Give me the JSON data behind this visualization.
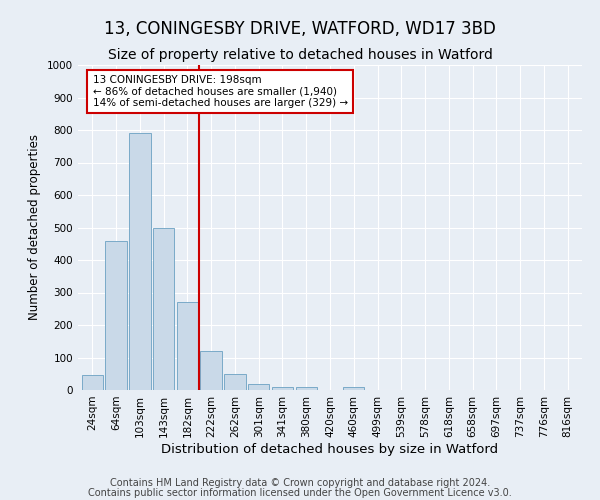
{
  "title": "13, CONINGESBY DRIVE, WATFORD, WD17 3BD",
  "subtitle": "Size of property relative to detached houses in Watford",
  "xlabel": "Distribution of detached houses by size in Watford",
  "ylabel": "Number of detached properties",
  "categories": [
    "24sqm",
    "64sqm",
    "103sqm",
    "143sqm",
    "182sqm",
    "222sqm",
    "262sqm",
    "301sqm",
    "341sqm",
    "380sqm",
    "420sqm",
    "460sqm",
    "499sqm",
    "539sqm",
    "578sqm",
    "618sqm",
    "658sqm",
    "697sqm",
    "737sqm",
    "776sqm",
    "816sqm"
  ],
  "values": [
    47,
    460,
    790,
    500,
    270,
    120,
    50,
    20,
    10,
    10,
    0,
    10,
    0,
    0,
    0,
    0,
    0,
    0,
    0,
    0,
    0
  ],
  "bar_color": "#c9d9e8",
  "bar_edge_color": "#7aaac8",
  "vline_x": 4.5,
  "annotation_text": "13 CONINGESBY DRIVE: 198sqm\n← 86% of detached houses are smaller (1,940)\n14% of semi-detached houses are larger (329) →",
  "annotation_box_color": "#ffffff",
  "annotation_box_edge_color": "#cc0000",
  "vline_color": "#cc0000",
  "ylim": [
    0,
    1000
  ],
  "yticks": [
    0,
    100,
    200,
    300,
    400,
    500,
    600,
    700,
    800,
    900,
    1000
  ],
  "footer1": "Contains HM Land Registry data © Crown copyright and database right 2024.",
  "footer2": "Contains public sector information licensed under the Open Government Licence v3.0.",
  "bg_color": "#e8eef5",
  "plot_bg_color": "#e8eef5",
  "grid_color": "#ffffff",
  "title_fontsize": 12,
  "subtitle_fontsize": 10,
  "xlabel_fontsize": 9.5,
  "ylabel_fontsize": 8.5,
  "tick_fontsize": 7.5,
  "annot_fontsize": 7.5,
  "footer_fontsize": 7
}
